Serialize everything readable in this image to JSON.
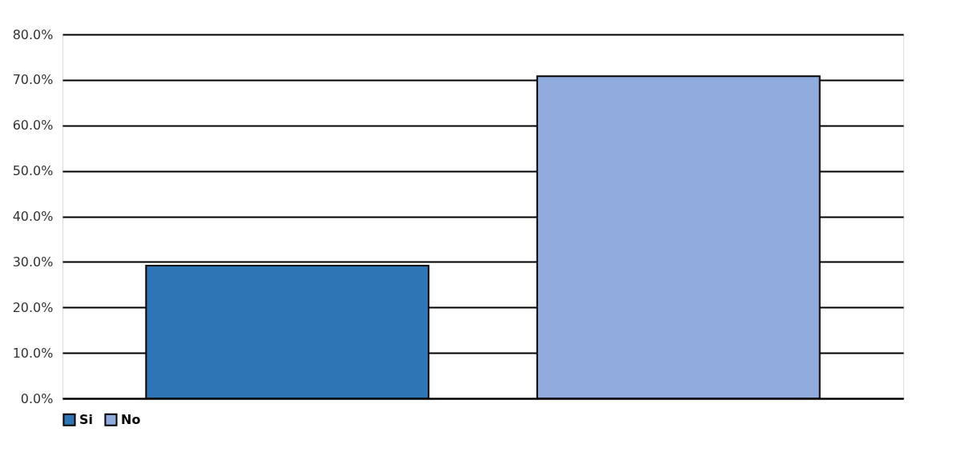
{
  "chart_data": {
    "type": "bar",
    "categories": [
      null,
      null
    ],
    "series": [
      {
        "name": "Si",
        "color": "#2e75b6",
        "values": [
          29.2,
          null
        ]
      },
      {
        "name": "No",
        "color": "#8faadc",
        "values": [
          null,
          70.8
        ]
      }
    ],
    "ylim": [
      0,
      80
    ],
    "yticks": [
      {
        "value": 0,
        "label": "0.0%"
      },
      {
        "value": 10,
        "label": "10.0%"
      },
      {
        "value": 20,
        "label": "20.0%"
      },
      {
        "value": 30,
        "label": "30.0%"
      },
      {
        "value": 40,
        "label": "40.0%"
      },
      {
        "value": 50,
        "label": "50.0%"
      },
      {
        "value": 60,
        "label": "60.0%"
      },
      {
        "value": 70,
        "label": "70.0%"
      },
      {
        "value": 80,
        "label": "80.0%"
      }
    ],
    "grid": "y",
    "legend": "bottom"
  }
}
